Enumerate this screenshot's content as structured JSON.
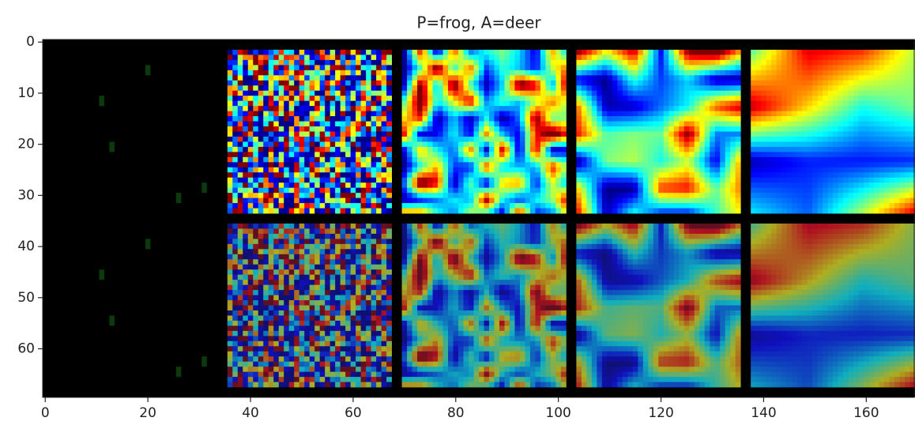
{
  "chart_data": {
    "type": "image",
    "title": "P=frog, A=deer",
    "xlim": [
      -0.5,
      169.5
    ],
    "ylim": [
      69.5,
      -0.5
    ],
    "xticks": [
      0,
      20,
      40,
      60,
      80,
      100,
      120,
      140,
      160
    ],
    "yticks": [
      0,
      10,
      20,
      30,
      40,
      50,
      60
    ]
  }
}
